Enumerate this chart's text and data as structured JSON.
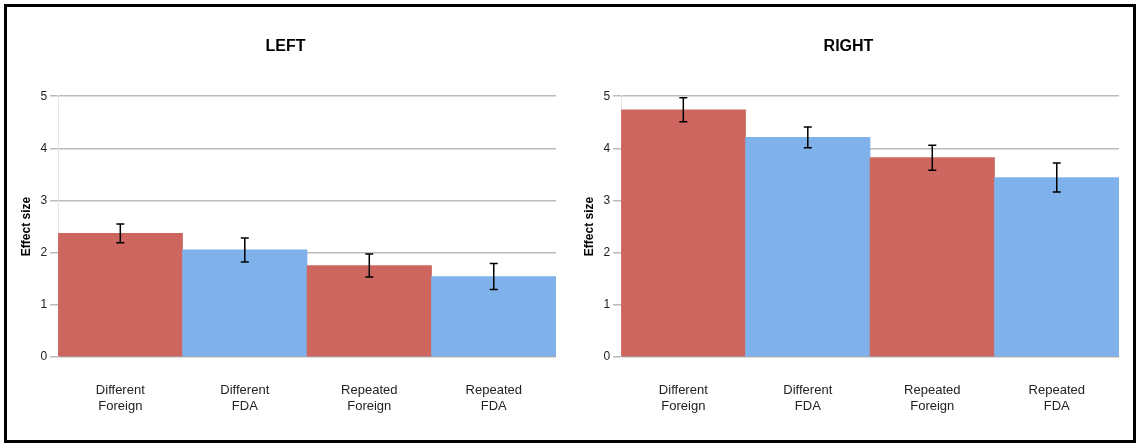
{
  "chart_data": [
    {
      "type": "bar",
      "title": "LEFT",
      "ylabel": "Effect size",
      "categories": [
        "Different\nForeign",
        "Different\nFDA",
        "Repeated\nForeign",
        "Repeated\nFDA"
      ],
      "values": [
        2.37,
        2.05,
        1.75,
        1.54
      ],
      "errors": [
        0.18,
        0.23,
        0.22,
        0.25
      ],
      "colors": [
        "#cd665f",
        "#7fb2ea",
        "#cd665f",
        "#7fb2ea"
      ],
      "ylim": [
        0,
        5
      ],
      "yticks": [
        0,
        1,
        2,
        3,
        4,
        5
      ],
      "grid": "y"
    },
    {
      "type": "bar",
      "title": "RIGHT",
      "ylabel": "Effect size",
      "categories": [
        "Different\nForeign",
        "Different\nFDA",
        "Repeated\nForeign",
        "Repeated\nFDA"
      ],
      "values": [
        4.74,
        4.21,
        3.82,
        3.44
      ],
      "errors": [
        0.23,
        0.2,
        0.24,
        0.28
      ],
      "colors": [
        "#cd665f",
        "#7fb2ea",
        "#cd665f",
        "#7fb2ea"
      ],
      "ylim": [
        0,
        5
      ],
      "yticks": [
        0,
        1,
        2,
        3,
        4,
        5
      ],
      "grid": "y"
    }
  ]
}
